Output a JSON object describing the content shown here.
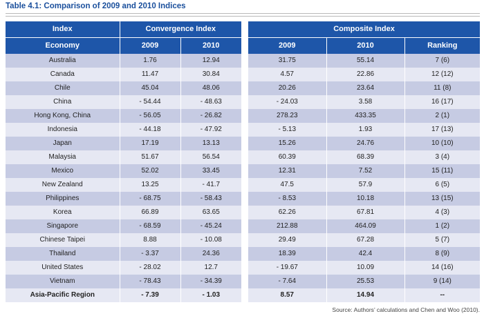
{
  "title": "Table 4.1: Comparison of 2009 and 2010 Indices",
  "header": {
    "index": "Index",
    "convergence": "Convergence Index",
    "composite": "Composite Index",
    "economy": "Economy",
    "y2009": "2009",
    "y2010": "2010",
    "ranking": "Ranking"
  },
  "rows": [
    {
      "economy": "Australia",
      "conv2009": "1.76",
      "conv2010": "12.94",
      "comp2009": "31.75",
      "comp2010": "55.14",
      "ranking": "7 (6)"
    },
    {
      "economy": "Canada",
      "conv2009": "11.47",
      "conv2010": "30.84",
      "comp2009": "4.57",
      "comp2010": "22.86",
      "ranking": "12 (12)"
    },
    {
      "economy": "Chile",
      "conv2009": "45.04",
      "conv2010": "48.06",
      "comp2009": "20.26",
      "comp2010": "23.64",
      "ranking": "11 (8)"
    },
    {
      "economy": "China",
      "conv2009": "- 54.44",
      "conv2010": "- 48.63",
      "comp2009": "- 24.03",
      "comp2010": "3.58",
      "ranking": "16 (17)"
    },
    {
      "economy": "Hong Kong, China",
      "conv2009": "- 56.05",
      "conv2010": "- 26.82",
      "comp2009": "278.23",
      "comp2010": "433.35",
      "ranking": "2 (1)"
    },
    {
      "economy": "Indonesia",
      "conv2009": "- 44.18",
      "conv2010": "- 47.92",
      "comp2009": "- 5.13",
      "comp2010": "1.93",
      "ranking": "17 (13)"
    },
    {
      "economy": "Japan",
      "conv2009": "17.19",
      "conv2010": "13.13",
      "comp2009": "15.26",
      "comp2010": "24.76",
      "ranking": "10 (10)"
    },
    {
      "economy": "Malaysia",
      "conv2009": "51.67",
      "conv2010": "56.54",
      "comp2009": "60.39",
      "comp2010": "68.39",
      "ranking": "3 (4)"
    },
    {
      "economy": "Mexico",
      "conv2009": "52.02",
      "conv2010": "33.45",
      "comp2009": "12.31",
      "comp2010": "7.52",
      "ranking": "15 (11)"
    },
    {
      "economy": "New Zealand",
      "conv2009": "13.25",
      "conv2010": "- 41.7",
      "comp2009": "47.5",
      "comp2010": "57.9",
      "ranking": "6 (5)"
    },
    {
      "economy": "Philippines",
      "conv2009": "- 68.75",
      "conv2010": "- 58.43",
      "comp2009": "- 8.53",
      "comp2010": "10.18",
      "ranking": "13 (15)"
    },
    {
      "economy": "Korea",
      "conv2009": "66.89",
      "conv2010": "63.65",
      "comp2009": "62.26",
      "comp2010": "67.81",
      "ranking": "4 (3)"
    },
    {
      "economy": "Singapore",
      "conv2009": "- 68.59",
      "conv2010": "- 45.24",
      "comp2009": "212.88",
      "comp2010": "464.09",
      "ranking": "1 (2)"
    },
    {
      "economy": "Chinese Taipei",
      "conv2009": "8.88",
      "conv2010": "- 10.08",
      "comp2009": "29.49",
      "comp2010": "67.28",
      "ranking": "5 (7)"
    },
    {
      "economy": "Thailand",
      "conv2009": "- 3.37",
      "conv2010": "24.36",
      "comp2009": "18.39",
      "comp2010": "42.4",
      "ranking": "8 (9)"
    },
    {
      "economy": "United States",
      "conv2009": "- 28.02",
      "conv2010": "12.7",
      "comp2009": "- 19.67",
      "comp2010": "10.09",
      "ranking": "14 (16)"
    },
    {
      "economy": "Vietnam",
      "conv2009": "- 78.43",
      "conv2010": "- 34.39",
      "comp2009": "- 7.64",
      "comp2010": "25.53",
      "ranking": "9 (14)"
    }
  ],
  "total": {
    "economy": "Asia-Pacific Region",
    "conv2009": "- 7.39",
    "conv2010": "- 1.03",
    "comp2009": "8.57",
    "comp2010": "14.94",
    "ranking": "--"
  },
  "source": "Source: Authors’ calculations and Chen and Woo (2010)."
}
